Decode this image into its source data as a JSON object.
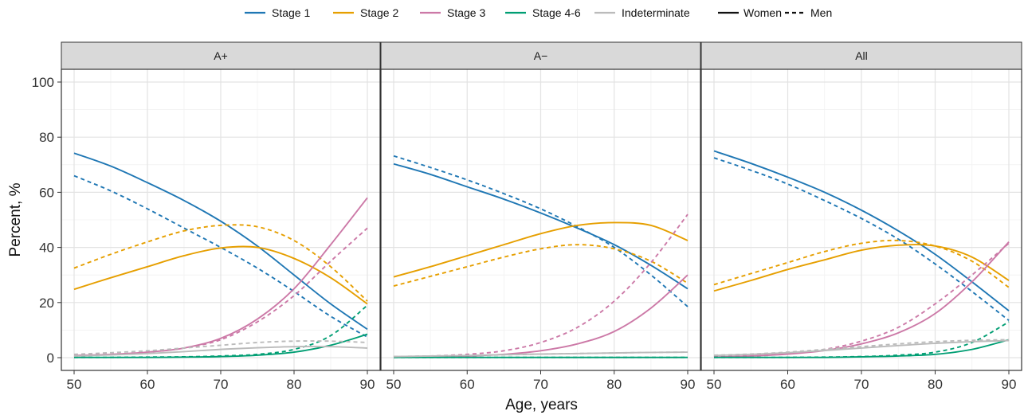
{
  "chart_data": {
    "type": "line",
    "xlabel": "Age, years",
    "ylabel": "Percent, %",
    "xlim": [
      50,
      90
    ],
    "ylim": [
      0,
      100
    ],
    "x_ticks": [
      50,
      60,
      70,
      80,
      90
    ],
    "y_ticks": [
      0,
      20,
      40,
      60,
      80,
      100
    ],
    "grid": true,
    "legend_position": "top",
    "stage_legend": [
      {
        "name": "Stage 1",
        "color": "#1f77b4"
      },
      {
        "name": "Stage 2",
        "color": "#e69f00"
      },
      {
        "name": "Stage 3",
        "color": "#cc79a7"
      },
      {
        "name": "Stage 4-6",
        "color": "#009e73"
      },
      {
        "name": "Indeterminate",
        "color": "#bbbbbb"
      }
    ],
    "sex_legend": [
      {
        "name": "Women",
        "linetype": "solid"
      },
      {
        "name": "Men",
        "linetype": "dashed"
      }
    ],
    "x": [
      50,
      55,
      60,
      65,
      70,
      75,
      80,
      85,
      90
    ],
    "panels": [
      {
        "strip": "A+",
        "series": [
          {
            "stage": "Stage 1",
            "sex": "Women",
            "values": [
              74.2,
              69.5,
              63.5,
              57.0,
              49.5,
              40.5,
              30.0,
              19.5,
              10.3
            ]
          },
          {
            "stage": "Stage 1",
            "sex": "Men",
            "values": [
              66.0,
              60.5,
              54.0,
              47.0,
              40.0,
              32.5,
              24.0,
              15.0,
              7.5
            ]
          },
          {
            "stage": "Stage 2",
            "sex": "Women",
            "values": [
              24.8,
              29.0,
              33.0,
              37.0,
              39.8,
              40.0,
              36.0,
              29.0,
              19.5
            ]
          },
          {
            "stage": "Stage 2",
            "sex": "Men",
            "values": [
              32.5,
              37.5,
              42.0,
              46.0,
              48.0,
              47.5,
              42.5,
              33.0,
              20.5
            ]
          },
          {
            "stage": "Stage 3",
            "sex": "Women",
            "values": [
              0.8,
              1.2,
              2.0,
              3.5,
              7.0,
              14.0,
              25.0,
              41.0,
              58.0
            ]
          },
          {
            "stage": "Stage 3",
            "sex": "Men",
            "values": [
              0.8,
              1.2,
              2.0,
              3.5,
              6.5,
              13.0,
              22.5,
              35.0,
              47.0
            ]
          },
          {
            "stage": "Stage 4-6",
            "sex": "Women",
            "values": [
              0.1,
              0.1,
              0.1,
              0.2,
              0.4,
              0.9,
              2.0,
              4.5,
              8.5
            ]
          },
          {
            "stage": "Stage 4-6",
            "sex": "Men",
            "values": [
              0.1,
              0.1,
              0.2,
              0.3,
              0.6,
              1.2,
              3.0,
              8.0,
              19.0
            ]
          },
          {
            "stage": "Indeterminate",
            "sex": "Women",
            "values": [
              0.6,
              1.0,
              1.5,
              2.2,
              3.0,
              3.6,
              4.0,
              4.0,
              3.5
            ]
          },
          {
            "stage": "Indeterminate",
            "sex": "Men",
            "values": [
              1.2,
              1.8,
              2.5,
              3.5,
              4.5,
              5.5,
              6.0,
              6.0,
              5.5
            ]
          }
        ]
      },
      {
        "strip": "A−",
        "series": [
          {
            "stage": "Stage 1",
            "sex": "Women",
            "values": [
              70.3,
              66.5,
              62.0,
              57.5,
              52.5,
              47.0,
              41.0,
              33.5,
              25.0
            ]
          },
          {
            "stage": "Stage 1",
            "sex": "Men",
            "values": [
              73.2,
              69.0,
              64.5,
              59.5,
              54.0,
              47.5,
              40.0,
              30.0,
              18.5
            ]
          },
          {
            "stage": "Stage 2",
            "sex": "Women",
            "values": [
              29.3,
              33.0,
              37.0,
              41.0,
              45.0,
              48.0,
              49.0,
              48.0,
              42.5
            ]
          },
          {
            "stage": "Stage 2",
            "sex": "Men",
            "values": [
              26.0,
              29.5,
              33.0,
              36.5,
              39.5,
              41.0,
              39.5,
              35.0,
              27.0
            ]
          },
          {
            "stage": "Stage 3",
            "sex": "Women",
            "values": [
              0.2,
              0.3,
              0.6,
              1.2,
              2.5,
              5.0,
              9.5,
              18.0,
              30.0
            ]
          },
          {
            "stage": "Stage 3",
            "sex": "Men",
            "values": [
              0.3,
              0.6,
              1.2,
              2.5,
              5.5,
              11.0,
              20.5,
              34.5,
              52.0
            ]
          },
          {
            "stage": "Stage 4-6",
            "sex": "Women",
            "values": [
              0.1,
              0.1,
              0.1,
              0.1,
              0.1,
              0.1,
              0.1,
              0.1,
              0.1
            ]
          },
          {
            "stage": "Stage 4-6",
            "sex": "Men",
            "values": [
              0.1,
              0.1,
              0.1,
              0.1,
              0.1,
              0.1,
              0.1,
              0.1,
              0.1
            ]
          },
          {
            "stage": "Indeterminate",
            "sex": "Women",
            "values": [
              0.4,
              0.6,
              0.8,
              1.1,
              1.3,
              1.5,
              1.7,
              1.9,
              2.0
            ]
          },
          {
            "stage": "Indeterminate",
            "sex": "Men",
            "values": [
              0.4,
              0.6,
              0.8,
              1.0,
              1.3,
              1.5,
              1.7,
              1.9,
              2.0
            ]
          }
        ]
      },
      {
        "strip": "All",
        "series": [
          {
            "stage": "Stage 1",
            "sex": "Women",
            "values": [
              75.0,
              70.5,
              65.5,
              60.0,
              53.5,
              46.0,
              37.5,
              27.5,
              17.0
            ]
          },
          {
            "stage": "Stage 1",
            "sex": "Men",
            "values": [
              72.5,
              68.0,
              63.0,
              57.0,
              50.5,
              43.0,
              34.0,
              24.0,
              13.5
            ]
          },
          {
            "stage": "Stage 2",
            "sex": "Women",
            "values": [
              24.2,
              28.0,
              32.0,
              35.5,
              39.0,
              40.8,
              40.5,
              36.5,
              28.0
            ]
          },
          {
            "stage": "Stage 2",
            "sex": "Men",
            "values": [
              26.5,
              30.5,
              34.5,
              38.5,
              41.5,
              42.5,
              40.5,
              35.0,
              25.5
            ]
          },
          {
            "stage": "Stage 3",
            "sex": "Women",
            "values": [
              0.2,
              0.6,
              1.3,
              2.6,
              5.0,
              9.0,
              16.0,
              27.5,
              42.0
            ]
          },
          {
            "stage": "Stage 3",
            "sex": "Men",
            "values": [
              0.3,
              0.7,
              1.5,
              3.0,
              6.0,
              11.0,
              19.5,
              30.0,
              41.5
            ]
          },
          {
            "stage": "Stage 4-6",
            "sex": "Women",
            "values": [
              0.1,
              0.1,
              0.1,
              0.1,
              0.3,
              0.6,
              1.2,
              3.0,
              6.5
            ]
          },
          {
            "stage": "Stage 4-6",
            "sex": "Men",
            "values": [
              0.1,
              0.1,
              0.1,
              0.2,
              0.4,
              0.9,
              2.0,
              5.5,
              13.0
            ]
          },
          {
            "stage": "Indeterminate",
            "sex": "Women",
            "values": [
              0.8,
              1.2,
              1.8,
              2.6,
              3.5,
              4.4,
              5.2,
              5.8,
              6.2
            ]
          },
          {
            "stage": "Indeterminate",
            "sex": "Men",
            "values": [
              0.9,
              1.3,
              2.0,
              3.0,
              4.0,
              5.0,
              5.8,
              6.3,
              6.5
            ]
          }
        ]
      }
    ]
  }
}
